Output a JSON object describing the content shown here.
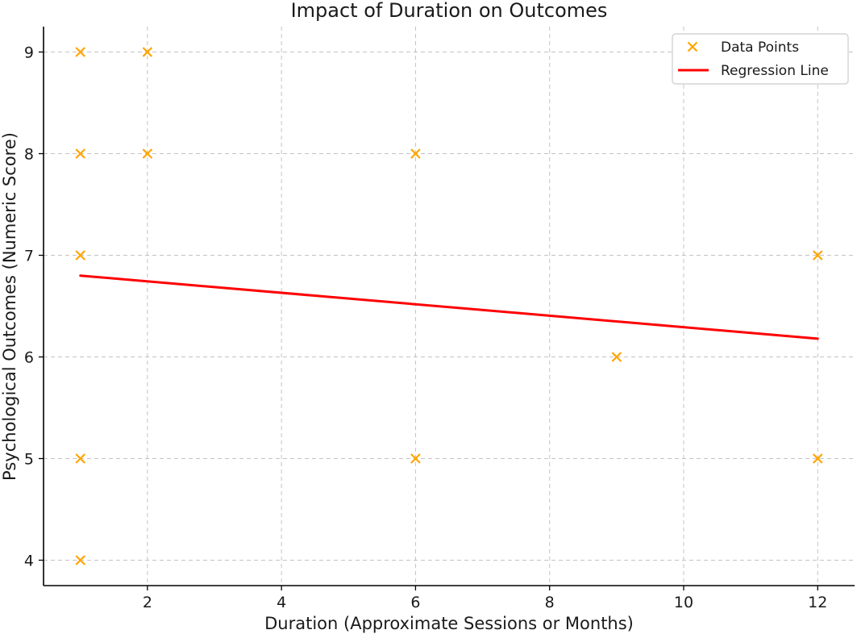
{
  "chart_data": {
    "type": "scatter",
    "title": "Impact of Duration on Outcomes",
    "xlabel": "Duration (Approximate Sessions or Months)",
    "ylabel": "Psychological Outcomes (Numeric Score)",
    "xlim": [
      0.45,
      12.55
    ],
    "ylim": [
      3.75,
      9.25
    ],
    "xticks": [
      2,
      4,
      6,
      8,
      10,
      12
    ],
    "yticks": [
      4,
      5,
      6,
      7,
      8,
      9
    ],
    "grid": true,
    "legend_position": "top-right",
    "series": [
      {
        "name": "Data Points",
        "kind": "scatter",
        "marker": "x",
        "color": "#FFA500",
        "points": [
          {
            "x": 1,
            "y": 9
          },
          {
            "x": 2,
            "y": 9
          },
          {
            "x": 1,
            "y": 8
          },
          {
            "x": 2,
            "y": 8
          },
          {
            "x": 6,
            "y": 8
          },
          {
            "x": 1,
            "y": 7
          },
          {
            "x": 12,
            "y": 7
          },
          {
            "x": 9,
            "y": 6
          },
          {
            "x": 1,
            "y": 5
          },
          {
            "x": 6,
            "y": 5
          },
          {
            "x": 12,
            "y": 5
          },
          {
            "x": 1,
            "y": 4
          }
        ]
      },
      {
        "name": "Regression Line",
        "kind": "line",
        "color": "#FF0000",
        "points": [
          {
            "x": 1,
            "y": 6.8
          },
          {
            "x": 12,
            "y": 6.18
          }
        ]
      }
    ]
  }
}
